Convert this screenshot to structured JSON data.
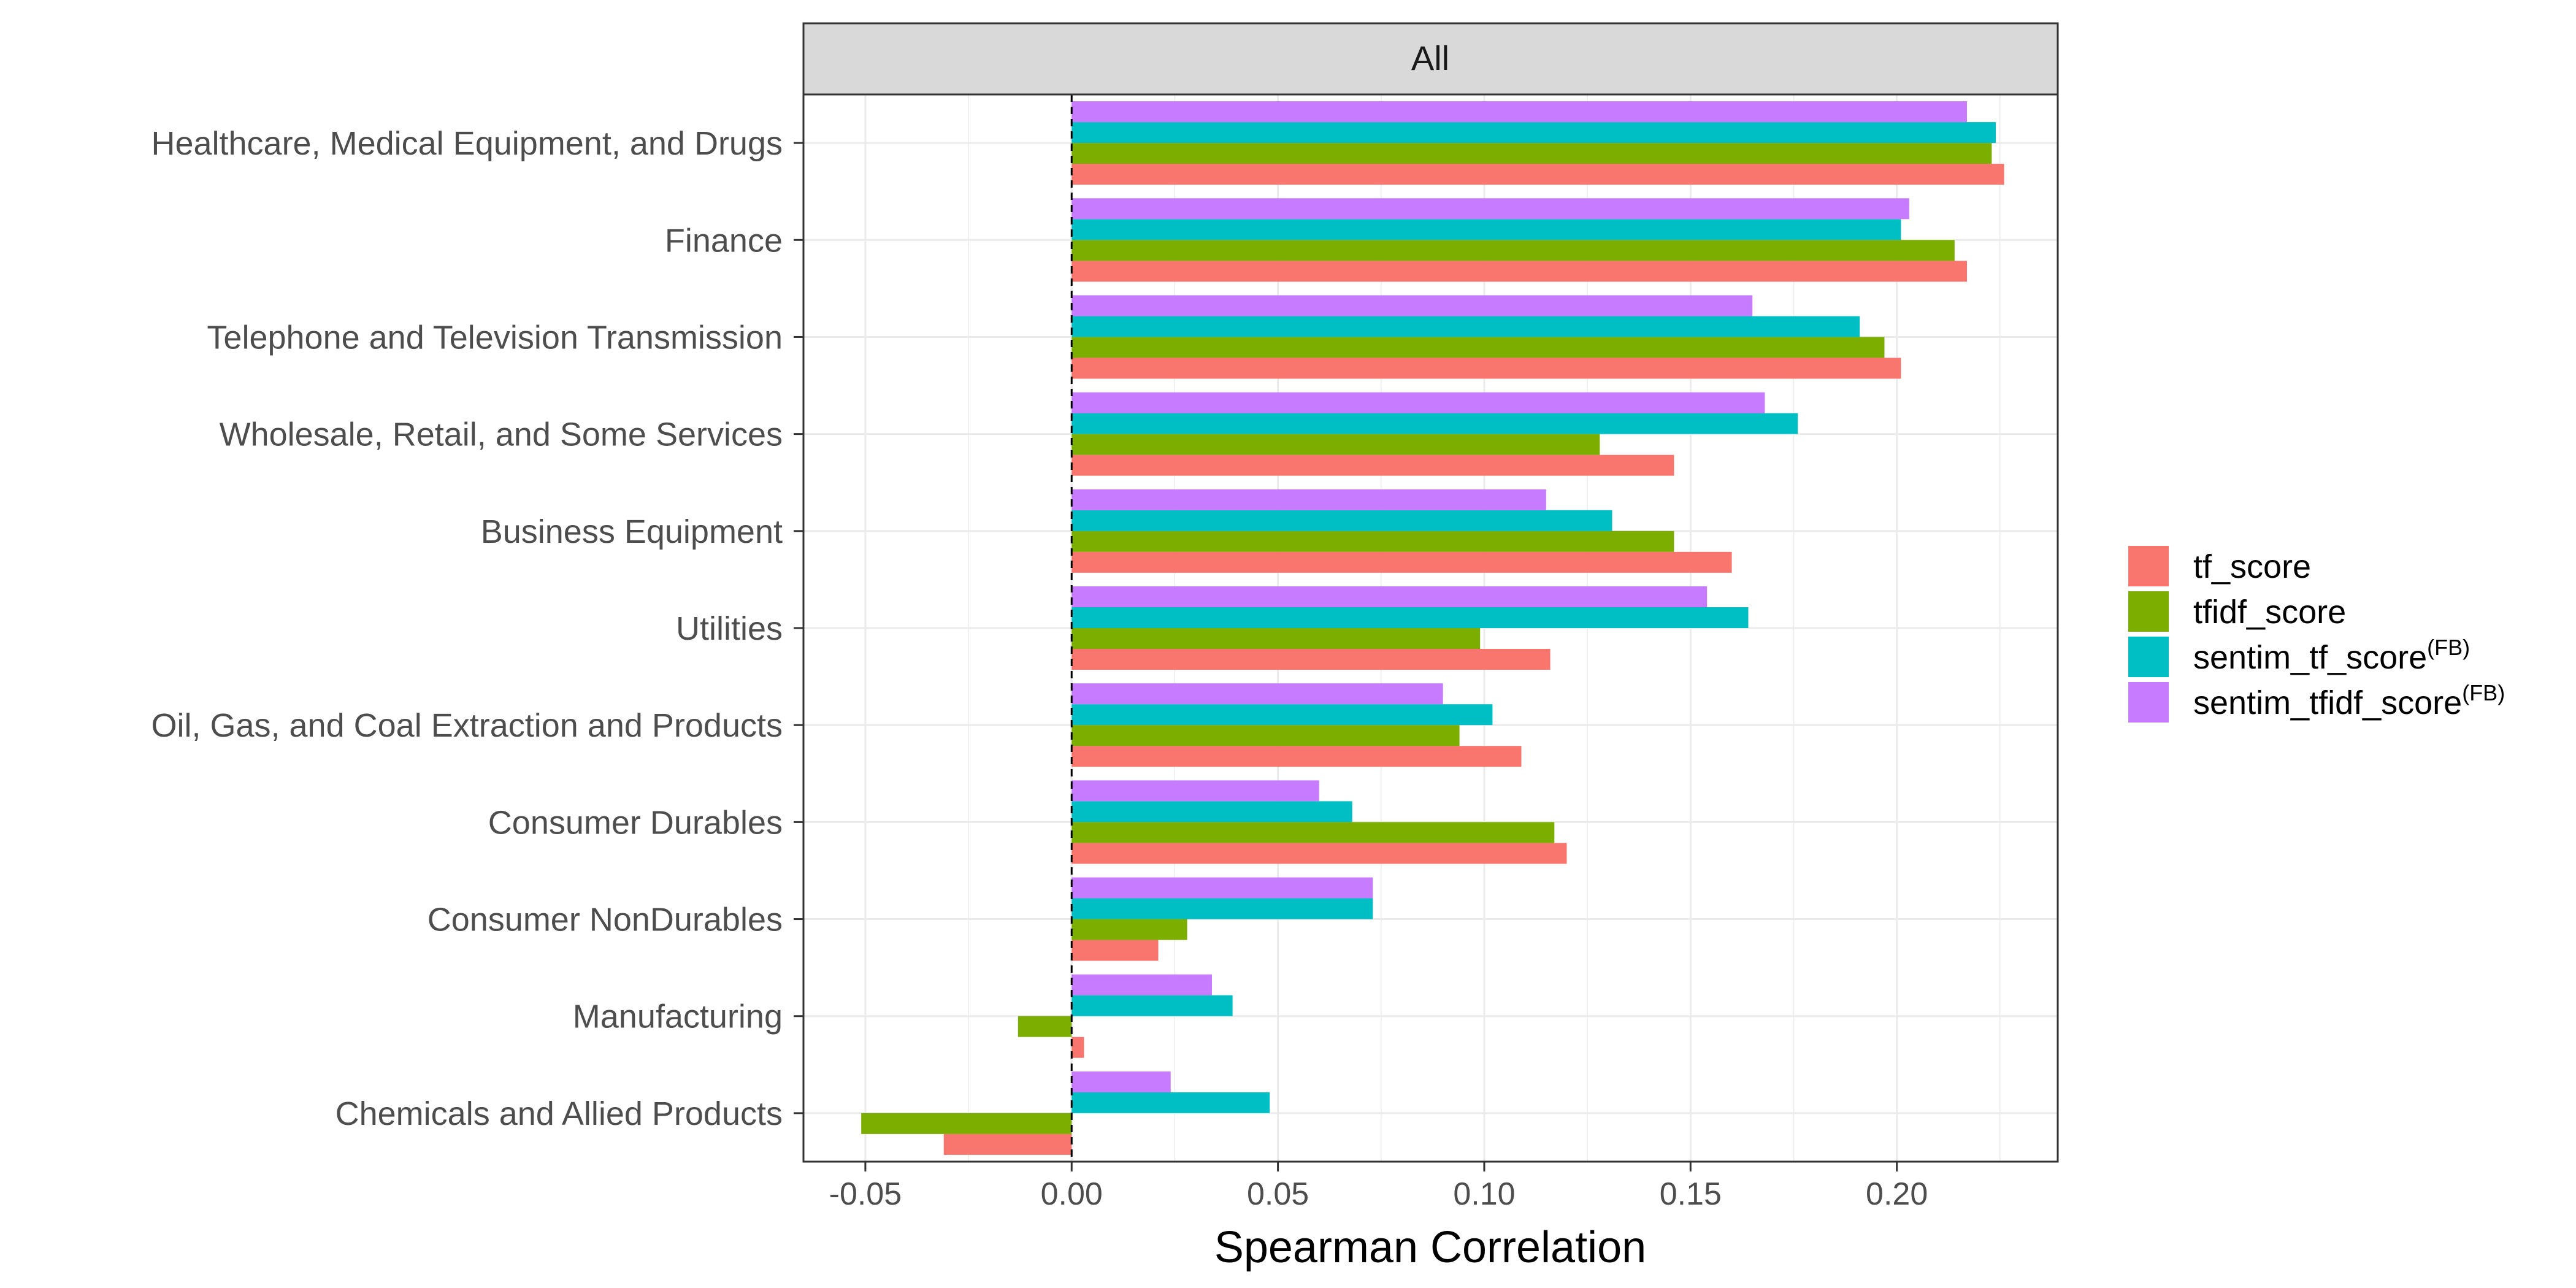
{
  "chart_data": {
    "type": "bar",
    "orientation": "horizontal",
    "facet_label": "All",
    "xlabel": "Spearman Correlation",
    "ylabel": "",
    "xlim": [
      -0.065,
      0.239
    ],
    "x_ticks": [
      -0.05,
      0.0,
      0.05,
      0.1,
      0.15,
      0.2
    ],
    "x_tick_labels": [
      "-0.05",
      "0.00",
      "0.05",
      "0.10",
      "0.15",
      "0.20"
    ],
    "reference_line": 0,
    "grid": true,
    "legend_position": "right",
    "categories": [
      "Healthcare, Medical Equipment, and Drugs",
      "Finance",
      "Telephone and Television Transmission",
      "Wholesale, Retail, and Some Services",
      "Business Equipment",
      "Utilities",
      "Oil, Gas, and Coal Extraction and Products",
      "Consumer Durables",
      "Consumer NonDurables",
      "Manufacturing",
      "Chemicals and Allied Products"
    ],
    "series": [
      {
        "name": "tf_score",
        "sup": "",
        "color": "#F8766D",
        "values": [
          0.226,
          0.217,
          0.201,
          0.146,
          0.16,
          0.116,
          0.109,
          0.12,
          0.021,
          0.003,
          -0.031
        ]
      },
      {
        "name": "tfidf_score",
        "sup": "",
        "color": "#7CAE00",
        "values": [
          0.223,
          0.214,
          0.197,
          0.128,
          0.146,
          0.099,
          0.094,
          0.117,
          0.028,
          -0.013,
          -0.051
        ]
      },
      {
        "name": "sentim_tf_score",
        "sup": "(FB)",
        "color": "#00BFC4",
        "values": [
          0.224,
          0.201,
          0.191,
          0.176,
          0.131,
          0.164,
          0.102,
          0.068,
          0.073,
          0.039,
          0.048
        ]
      },
      {
        "name": "sentim_tfidf_score",
        "sup": "(FB)",
        "color": "#C77CFF",
        "values": [
          0.217,
          0.203,
          0.165,
          0.168,
          0.115,
          0.154,
          0.09,
          0.06,
          0.073,
          0.034,
          0.024
        ]
      }
    ]
  }
}
